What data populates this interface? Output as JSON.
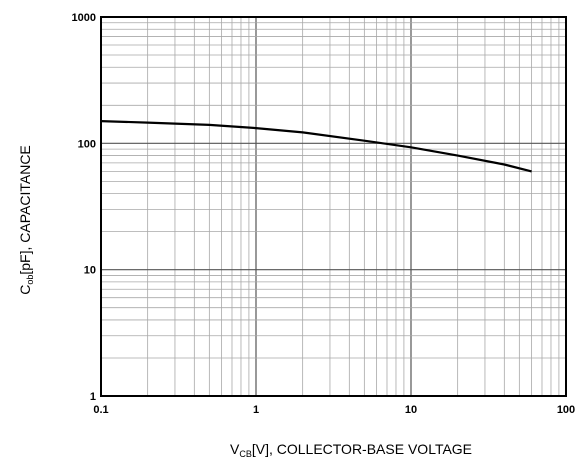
{
  "chart_data": {
    "type": "line",
    "title": "",
    "xscale": "log",
    "yscale": "log",
    "xlim": [
      0.1,
      100
    ],
    "ylim": [
      1,
      1000
    ],
    "grid": true,
    "xlabel": {
      "main": "V",
      "sub": "CB",
      "rest": "[V], COLLECTOR-BASE VOLTAGE"
    },
    "ylabel": {
      "main": "C",
      "sub": "ob",
      "rest": "[pF], CAPACITANCE"
    },
    "x_tick_labels": [
      "0.1",
      "1",
      "10",
      "100"
    ],
    "y_tick_labels": [
      "1",
      "10",
      "100",
      "1000"
    ],
    "series": [
      {
        "x": [
          0.1,
          0.2,
          0.5,
          1,
          2,
          5,
          10,
          20,
          40,
          60
        ],
        "y": [
          150,
          146,
          140,
          132,
          122,
          105,
          93,
          80,
          68,
          60
        ]
      }
    ]
  }
}
